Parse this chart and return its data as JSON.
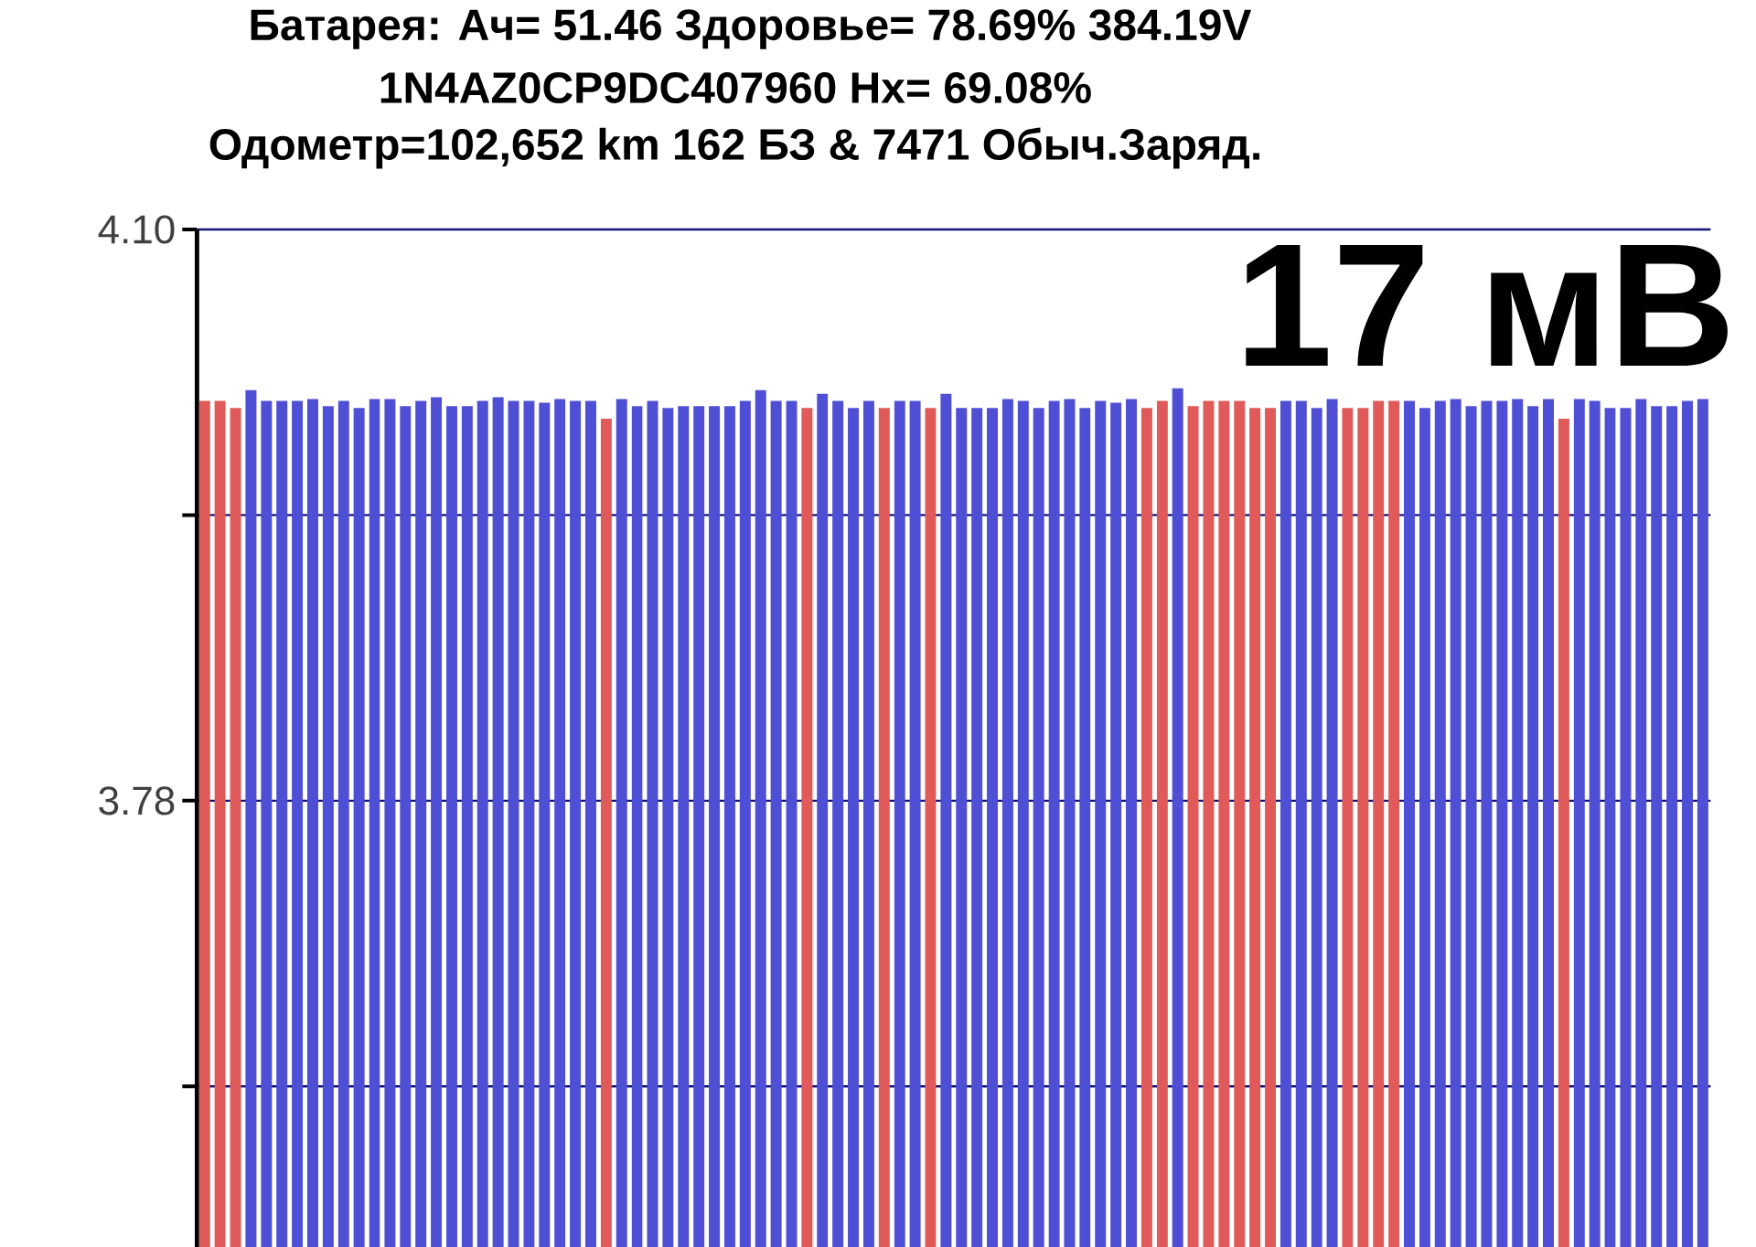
{
  "chart_data": {
    "type": "bar",
    "title": "Батарея:  Ач= 51.46  Здоровье= 78.69%  384.19V",
    "subtitle": "1N4AZ0CP9DC407960   Hx= 69.08%",
    "annotations": [
      "Одометр=102,652 km 162 БЗ & 7471 Обыч.Заряд.",
      "17 мВ"
    ],
    "categories": [
      null,
      null,
      null,
      null,
      null,
      null,
      null,
      null,
      null,
      null,
      null,
      null,
      null,
      null,
      null,
      null,
      null,
      null,
      null,
      null,
      null,
      null,
      null,
      null,
      null,
      null,
      null,
      null,
      null,
      null,
      null,
      null,
      null,
      null,
      null,
      null,
      null,
      null,
      null,
      null,
      null,
      null,
      null,
      null,
      null,
      null,
      null,
      null,
      null,
      null,
      null,
      null,
      null,
      null,
      null,
      null,
      null,
      null,
      null,
      null,
      null,
      null,
      null,
      null,
      null,
      null,
      null,
      null,
      null,
      null,
      null,
      null,
      null,
      null,
      null,
      null,
      null,
      null,
      null,
      null,
      null,
      null,
      null,
      null,
      null,
      null,
      null,
      null,
      null,
      null,
      null,
      null,
      null,
      null,
      null,
      null,
      null,
      null
    ],
    "values": [
      4.004,
      4.004,
      4.0,
      4.01,
      4.004,
      4.004,
      4.004,
      4.005,
      4.001,
      4.004,
      4.0,
      4.005,
      4.005,
      4.001,
      4.004,
      4.006,
      4.001,
      4.001,
      4.004,
      4.006,
      4.004,
      4.004,
      4.003,
      4.005,
      4.004,
      4.004,
      3.994,
      4.005,
      4.001,
      4.004,
      4.0,
      4.001,
      4.001,
      4.001,
      4.001,
      4.004,
      4.01,
      4.004,
      4.004,
      4.0,
      4.008,
      4.004,
      4.0,
      4.004,
      4.0,
      4.004,
      4.004,
      4.0,
      4.008,
      4.0,
      4.0,
      4.0,
      4.005,
      4.004,
      4.0,
      4.004,
      4.005,
      4.0,
      4.004,
      4.003,
      4.005,
      4.0,
      4.004,
      4.011,
      4.001,
      4.004,
      4.004,
      4.004,
      4.0,
      4.0,
      4.004,
      4.004,
      4.0,
      4.005,
      4.0,
      4.0,
      4.004,
      4.004,
      4.004,
      4.0,
      4.004,
      4.005,
      4.001,
      4.004,
      4.004,
      4.005,
      4.001,
      4.005,
      3.994,
      4.005,
      4.004,
      4.0,
      4.0,
      4.005,
      4.001,
      4.001,
      4.004,
      4.005
    ],
    "colors": [
      "#e05a5a",
      "#e05a5a",
      "#e05a5a",
      "#4f4fd6",
      "#4f4fd6",
      "#4f4fd6",
      "#4f4fd6",
      "#4f4fd6",
      "#4f4fd6",
      "#4f4fd6",
      "#4f4fd6",
      "#4f4fd6",
      "#4f4fd6",
      "#4f4fd6",
      "#4f4fd6",
      "#4f4fd6",
      "#4f4fd6",
      "#4f4fd6",
      "#4f4fd6",
      "#4f4fd6",
      "#4f4fd6",
      "#4f4fd6",
      "#4f4fd6",
      "#4f4fd6",
      "#4f4fd6",
      "#4f4fd6",
      "#e05a5a",
      "#4f4fd6",
      "#4f4fd6",
      "#4f4fd6",
      "#4f4fd6",
      "#4f4fd6",
      "#4f4fd6",
      "#4f4fd6",
      "#4f4fd6",
      "#4f4fd6",
      "#4f4fd6",
      "#4f4fd6",
      "#4f4fd6",
      "#e05a5a",
      "#4f4fd6",
      "#4f4fd6",
      "#4f4fd6",
      "#4f4fd6",
      "#e05a5a",
      "#4f4fd6",
      "#4f4fd6",
      "#e05a5a",
      "#4f4fd6",
      "#4f4fd6",
      "#4f4fd6",
      "#4f4fd6",
      "#4f4fd6",
      "#4f4fd6",
      "#4f4fd6",
      "#4f4fd6",
      "#4f4fd6",
      "#4f4fd6",
      "#4f4fd6",
      "#4f4fd6",
      "#4f4fd6",
      "#e05a5a",
      "#e05a5a",
      "#4f4fd6",
      "#e05a5a",
      "#e05a5a",
      "#e05a5a",
      "#e05a5a",
      "#e05a5a",
      "#e05a5a",
      "#4f4fd6",
      "#4f4fd6",
      "#4f4fd6",
      "#4f4fd6",
      "#e05a5a",
      "#e05a5a",
      "#e05a5a",
      "#e05a5a",
      "#4f4fd6",
      "#4f4fd6",
      "#4f4fd6",
      "#4f4fd6",
      "#4f4fd6",
      "#4f4fd6",
      "#4f4fd6",
      "#4f4fd6",
      "#4f4fd6",
      "#4f4fd6",
      "#e05a5a",
      "#4f4fd6",
      "#4f4fd6",
      "#4f4fd6",
      "#4f4fd6",
      "#4f4fd6",
      "#4f4fd6",
      "#4f4fd6",
      "#4f4fd6",
      "#4f4fd6"
    ],
    "ylim": [
      3.53,
      4.1
    ],
    "yticks": [
      {
        "value": 3.62,
        "label": null
      },
      {
        "value": 3.78,
        "label": "3.78"
      },
      {
        "value": 3.94,
        "label": null
      },
      {
        "value": 4.1,
        "label": "4.10"
      }
    ],
    "grid": "y"
  }
}
